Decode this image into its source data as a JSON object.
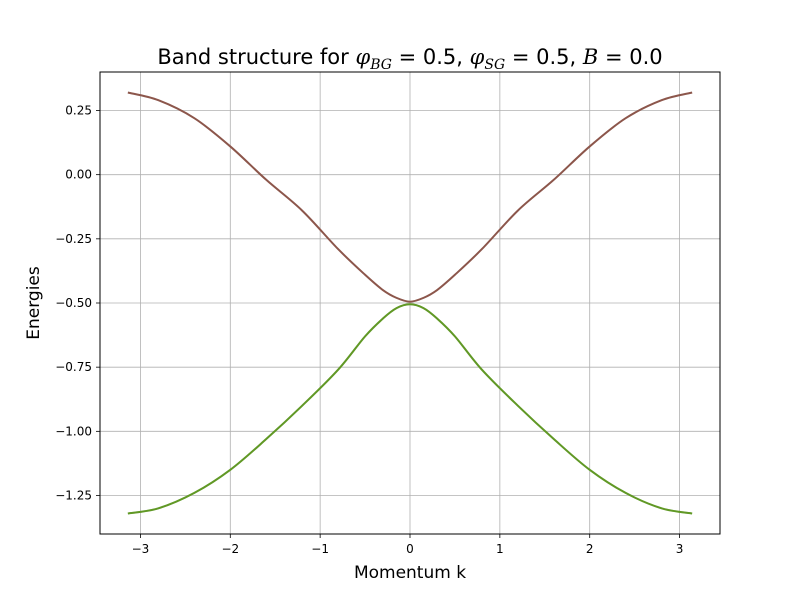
{
  "chart_data": {
    "type": "line",
    "title": {
      "prefix": "Band structure for ",
      "parts": [
        {
          "symbol": "φ",
          "sub": "BG",
          "rel": " = ",
          "value": "0.5"
        },
        {
          "symbol": "φ",
          "sub": "SG",
          "rel": " = ",
          "value": "0.5"
        },
        {
          "symbol": "B",
          "sub": "",
          "rel": " = ",
          "value": "0.0"
        }
      ],
      "separator": ", "
    },
    "xlabel": "Momentum k",
    "ylabel": "Energies",
    "xlim": [
      -3.45,
      3.45
    ],
    "ylim": [
      -1.4,
      0.4
    ],
    "xticks": [
      -3,
      -2,
      -1,
      0,
      1,
      2,
      3
    ],
    "xtick_labels": [
      "−3",
      "−2",
      "−1",
      "0",
      "1",
      "2",
      "3"
    ],
    "yticks": [
      0.25,
      0.0,
      -0.25,
      -0.5,
      -0.75,
      -1.0,
      -1.25
    ],
    "ytick_labels": [
      "0.25",
      "0.00",
      "−0.25",
      "−0.50",
      "−0.75",
      "−1.00",
      "−1.25"
    ],
    "grid": true,
    "series": [
      {
        "color": "#8c564b",
        "x": [
          -3.14,
          -2.8,
          -2.4,
          -2.0,
          -1.6,
          -1.2,
          -0.8,
          -0.5,
          -0.3,
          -0.15,
          0.0,
          0.15,
          0.3,
          0.5,
          0.8,
          1.2,
          1.6,
          2.0,
          2.4,
          2.8,
          3.14
        ],
        "y": [
          0.32,
          0.29,
          0.22,
          0.11,
          -0.02,
          -0.14,
          -0.29,
          -0.39,
          -0.45,
          -0.48,
          -0.495,
          -0.48,
          -0.45,
          -0.39,
          -0.29,
          -0.14,
          -0.02,
          0.11,
          0.22,
          0.29,
          0.32
        ]
      },
      {
        "color": "#2ca02c",
        "x": [
          -3.14,
          -2.8,
          -2.4,
          -2.0,
          -1.6,
          -1.2,
          -0.8,
          -0.5,
          -0.3,
          -0.15,
          0.0,
          0.15,
          0.3,
          0.5,
          0.8,
          1.2,
          1.6,
          2.0,
          2.4,
          2.8,
          3.14
        ],
        "y": [
          -1.32,
          -1.3,
          -1.24,
          -1.15,
          -1.03,
          -0.9,
          -0.76,
          -0.63,
          -0.56,
          -0.52,
          -0.505,
          -0.52,
          -0.56,
          -0.63,
          -0.76,
          -0.9,
          -1.03,
          -1.15,
          -1.24,
          -1.3,
          -1.32
        ]
      },
      {
        "color": "#ff7f0e",
        "x": [
          -3.14,
          -2.8,
          -2.4,
          -2.0,
          -1.6,
          -1.2,
          -0.8,
          -0.5,
          -0.3,
          -0.15,
          0.0,
          0.15,
          0.3,
          0.5,
          0.8,
          1.2,
          1.6,
          2.0,
          2.4,
          2.8,
          3.14
        ],
        "y": [
          -1.32,
          -1.3,
          -1.24,
          -1.15,
          -1.03,
          -0.9,
          -0.76,
          -0.63,
          -0.56,
          -0.52,
          -0.505,
          -0.52,
          -0.56,
          -0.63,
          -0.76,
          -0.9,
          -1.03,
          -1.15,
          -1.24,
          -1.3,
          -1.32
        ]
      }
    ]
  }
}
